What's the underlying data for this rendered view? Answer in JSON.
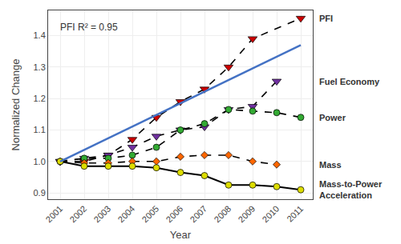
{
  "chart_data": {
    "type": "line",
    "xlabel": "Year",
    "ylabel": "Normalized Change",
    "annotation": "PFI R² = 0.95",
    "x": [
      2001,
      2002,
      2003,
      2004,
      2005,
      2006,
      2007,
      2008,
      2009,
      2010,
      2011
    ],
    "xlim": [
      2000.5,
      2011.5
    ],
    "xticks": [
      2001,
      2002,
      2003,
      2004,
      2005,
      2006,
      2007,
      2008,
      2009,
      2010,
      2011
    ],
    "ylim": [
      0.88,
      1.48
    ],
    "yticks": [
      0.9,
      {
        "value": 1.0,
        "label": "1.0"
      },
      1.1,
      1.2,
      1.3,
      1.4
    ],
    "grid": true,
    "series": [
      {
        "name": "PFI",
        "color": "#cc0000",
        "marker": "triangle-down",
        "line_style": "dashed",
        "values": [
          1.0,
          1.0,
          1.02,
          1.07,
          1.14,
          1.19,
          1.23,
          1.3,
          1.39,
          null,
          1.455
        ]
      },
      {
        "name": "Fuel Economy",
        "color": "#7030a0",
        "marker": "triangle-down",
        "line_style": "dashed",
        "values": [
          1.0,
          1.01,
          1.02,
          1.045,
          1.08,
          1.1,
          1.11,
          1.165,
          1.175,
          1.255,
          null
        ]
      },
      {
        "name": "Power",
        "color": "#33aa33",
        "marker": "circle",
        "line_style": "dashed",
        "values": [
          1.0,
          1.01,
          1.01,
          1.02,
          1.045,
          1.1,
          1.12,
          1.165,
          1.16,
          1.155,
          1.14
        ]
      },
      {
        "name": "Mass",
        "color": "#ff6600",
        "marker": "diamond",
        "line_style": "dashed",
        "values": [
          1.0,
          0.995,
          0.995,
          1.0,
          1.0,
          1.015,
          1.02,
          1.02,
          1.0,
          0.99,
          null
        ]
      },
      {
        "name": "Mass-to-Power\nAcceleration",
        "color": "#dddd00",
        "marker": "circle",
        "line_style": "solid",
        "values": [
          1.0,
          0.985,
          0.985,
          0.985,
          0.98,
          0.965,
          0.955,
          0.925,
          0.925,
          0.92,
          0.91
        ]
      },
      {
        "color": "#4472c4",
        "marker": "none",
        "line_style": "solid",
        "x": [
          2001,
          2011
        ],
        "values": [
          1.0,
          1.37
        ]
      }
    ]
  }
}
